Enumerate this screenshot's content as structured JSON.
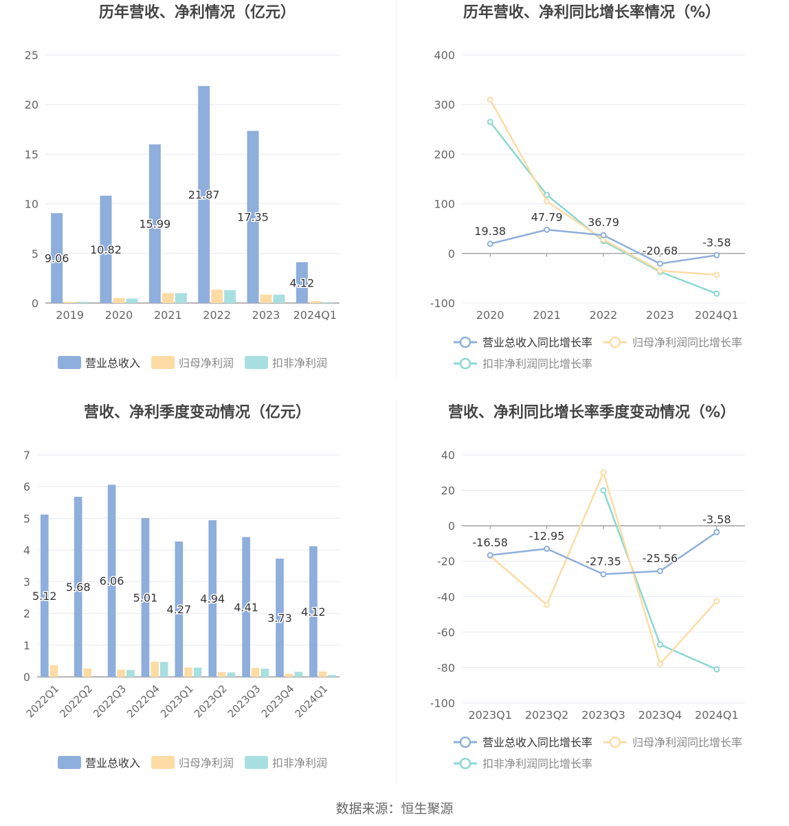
{
  "footer": "数据来源：恒生聚源",
  "chart_data": [
    {
      "type": "bar",
      "title": "历年营收、净利情况（亿元）",
      "categories": [
        "2019",
        "2020",
        "2021",
        "2022",
        "2023",
        "2024Q1"
      ],
      "ylim": [
        0,
        25
      ],
      "yticks": [
        0,
        5,
        10,
        15,
        20,
        25
      ],
      "series": [
        {
          "name": "营业总收入",
          "color": "#8eaedc",
          "values": [
            9.06,
            10.82,
            15.99,
            21.87,
            17.35,
            4.12
          ],
          "labels": [
            "9.06",
            "10.82",
            "15.99",
            "21.87",
            "17.35",
            "4.12"
          ]
        },
        {
          "name": "归母净利润",
          "color": "#fddba4",
          "values": [
            0.12,
            0.5,
            1.0,
            1.35,
            0.85,
            0.18
          ]
        },
        {
          "name": "扣非净利润",
          "color": "#a8dfe0",
          "values": [
            0.12,
            0.45,
            1.0,
            1.3,
            0.85,
            0.08
          ]
        }
      ]
    },
    {
      "type": "line",
      "title": "历年营收、净利同比增长率情况（%）",
      "categories": [
        "2020",
        "2021",
        "2022",
        "2023",
        "2024Q1"
      ],
      "ylim": [
        -100,
        400
      ],
      "yticks": [
        -100,
        0,
        100,
        200,
        300,
        400
      ],
      "series": [
        {
          "name": "营业总收入同比增长率",
          "color": "#8eaedc",
          "values": [
            19.38,
            47.79,
            36.79,
            -20.68,
            -3.58
          ],
          "labels": [
            "19.38",
            "47.79",
            "36.79",
            "-20.68",
            "-3.58"
          ]
        },
        {
          "name": "归母净利润同比增长率",
          "color": "#fddba4",
          "values": [
            310,
            105,
            28,
            -35,
            -43
          ]
        },
        {
          "name": "扣非净利润同比增长率",
          "color": "#8ad7d3",
          "values": [
            265,
            118,
            25,
            -37,
            -81
          ]
        }
      ]
    },
    {
      "type": "bar",
      "title": "营收、净利季度变动情况（亿元）",
      "categories": [
        "2022Q1",
        "2022Q2",
        "2022Q3",
        "2022Q4",
        "2023Q1",
        "2023Q2",
        "2023Q3",
        "2023Q4",
        "2024Q1"
      ],
      "ylim": [
        0,
        7
      ],
      "yticks": [
        0,
        1,
        2,
        3,
        4,
        5,
        6,
        7
      ],
      "series": [
        {
          "name": "营业总收入",
          "color": "#8eaedc",
          "values": [
            5.12,
            5.68,
            6.06,
            5.01,
            4.27,
            4.94,
            4.41,
            3.73,
            4.12
          ],
          "labels": [
            "5.12",
            "5.68",
            "6.06",
            "5.01",
            "4.27",
            "4.94",
            "4.41",
            "3.73",
            "4.12"
          ]
        },
        {
          "name": "归母净利润",
          "color": "#fddba4",
          "values": [
            0.37,
            0.27,
            0.23,
            0.48,
            0.3,
            0.15,
            0.28,
            0.1,
            0.17
          ]
        },
        {
          "name": "扣非净利润",
          "color": "#a8dfe0",
          "values": [
            0.0,
            0.0,
            0.22,
            0.47,
            0.29,
            0.14,
            0.26,
            0.16,
            0.06
          ]
        }
      ]
    },
    {
      "type": "line",
      "title": "营收、净利同比增长率季度变动情况（%）",
      "categories": [
        "2023Q1",
        "2023Q2",
        "2023Q3",
        "2023Q4",
        "2024Q1"
      ],
      "ylim": [
        -100,
        40
      ],
      "yticks": [
        -100,
        -80,
        -60,
        -40,
        -20,
        0,
        20,
        40
      ],
      "series": [
        {
          "name": "营业总收入同比增长率",
          "color": "#8eaedc",
          "values": [
            -16.58,
            -12.95,
            -27.35,
            -25.56,
            -3.58
          ],
          "labels": [
            "-16.58",
            "-12.95",
            "-27.35",
            "-25.56",
            "-3.58"
          ]
        },
        {
          "name": "归母净利润同比增长率",
          "color": "#fddba4",
          "values": [
            -17,
            -44.5,
            30,
            -78,
            -42.5
          ]
        },
        {
          "name": "扣非净利润同比增长率",
          "color": "#8ad7d3",
          "values": [
            null,
            null,
            20,
            -67,
            -81
          ]
        }
      ]
    }
  ]
}
